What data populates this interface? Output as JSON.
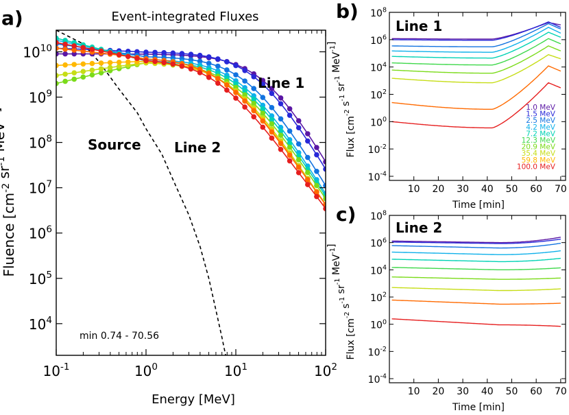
{
  "panels": {
    "a": {
      "label": "a)"
    },
    "b": {
      "label": "b)"
    },
    "c": {
      "label": "c)"
    }
  },
  "chart_data": [
    {
      "id": "a",
      "type": "line",
      "title": "Event-integrated Fluxes",
      "xlabel": "Energy [MeV]",
      "ylabel": "Fluence [cm-2 sr-1 MeV-1]",
      "xscale": "log",
      "yscale": "log",
      "xlim": [
        0.1,
        100
      ],
      "ylim": [
        2000,
        30000000000
      ],
      "xticks": [
        0.1,
        1,
        10,
        100
      ],
      "xtick_labels": [
        {
          "base": "10",
          "exp": "-1"
        },
        {
          "base": "10",
          "exp": "0"
        },
        {
          "base": "10",
          "exp": "1"
        },
        {
          "base": "10",
          "exp": "2"
        }
      ],
      "yticks": [
        10000,
        100000,
        1000000,
        10000000,
        100000000,
        1000000000,
        10000000000
      ],
      "ytick_labels": [
        {
          "base": "10",
          "exp": "4"
        },
        {
          "base": "10",
          "exp": "5"
        },
        {
          "base": "10",
          "exp": "6"
        },
        {
          "base": "10",
          "exp": "7"
        },
        {
          "base": "10",
          "exp": "8"
        },
        {
          "base": "10",
          "exp": "9"
        },
        {
          "base": "10",
          "exp": "10"
        }
      ],
      "annotations": [
        "Line 1",
        "Line 2",
        "Source",
        "min 0.74 - 70.56"
      ],
      "source_curve": {
        "style": "dashed",
        "x": [
          0.1,
          0.2,
          0.3,
          0.5,
          0.8,
          1.0,
          1.5,
          2.0,
          3.0,
          4.0,
          5.0,
          6.0,
          7.0,
          7.7
        ],
        "y": [
          30000000000,
          15000000000,
          6000000000,
          1500000000,
          450000000,
          200000000,
          55000000,
          15000000,
          2500000,
          500000,
          100000,
          20000,
          5000,
          2000
        ]
      },
      "series": [
        {
          "color": "#5a16a4",
          "low_energy": 9000000000,
          "peak": 9000000000,
          "rollover": 22,
          "decay_power": 3.5
        },
        {
          "color": "#2828d8",
          "low_energy": 12000000000,
          "peak": 10000000000,
          "rollover": 18,
          "decay_power": 3.4
        },
        {
          "color": "#1273e0",
          "low_energy": 15000000000,
          "peak": 8000000000,
          "rollover": 14,
          "decay_power": 3.3
        },
        {
          "color": "#0fb0ea",
          "low_energy": 18000000000,
          "peak": 7000000000,
          "rollover": 12,
          "decay_power": 3.2
        },
        {
          "color": "#00d2b4",
          "low_energy": 20000000000,
          "peak": 6500000000,
          "rollover": 11,
          "decay_power": 3.1
        },
        {
          "color": "#7bdb1a",
          "low_energy": 2000000000,
          "peak": 6000000000,
          "rollover": 10,
          "decay_power": 3.0
        },
        {
          "color": "#c6dd16",
          "low_energy": 3000000000,
          "peak": 6000000000,
          "rollover": 9,
          "decay_power": 3.0
        },
        {
          "color": "#ffb800",
          "low_energy": 5000000000,
          "peak": 6500000000,
          "rollover": 8,
          "decay_power": 2.9
        },
        {
          "color": "#ff6a00",
          "low_energy": 12000000000,
          "peak": 7500000000,
          "rollover": 7,
          "decay_power": 2.8
        },
        {
          "color": "#e61e1e",
          "low_energy": 16000000000,
          "peak": 7000000000,
          "rollover": 6,
          "decay_power": 2.7
        }
      ]
    },
    {
      "id": "b",
      "type": "line",
      "title": "Line 1",
      "xlabel": "Time [min]",
      "ylabel": "Flux [cm-2 s-1 sr-1 MeV-1]",
      "yscale": "log",
      "xlim": [
        0,
        72
      ],
      "ylim": [
        5e-05,
        100000000
      ],
      "xticks": [
        10,
        20,
        30,
        40,
        50,
        60,
        70
      ],
      "yticks": [
        0.0001,
        0.01,
        1,
        100,
        10000,
        1000000,
        100000000
      ],
      "ytick_labels": [
        {
          "base": "10",
          "exp": "-4"
        },
        {
          "base": "10",
          "exp": "-2"
        },
        {
          "base": "10",
          "exp": "0"
        },
        {
          "base": "10",
          "exp": "2"
        },
        {
          "base": "10",
          "exp": "4"
        },
        {
          "base": "10",
          "exp": "6"
        },
        {
          "base": "10",
          "exp": "8"
        }
      ],
      "legend": {
        "placement": "lower right",
        "entries": [
          {
            "label": "1.0 MeV",
            "color": "#5a16a4"
          },
          {
            "label": "1.5 MeV",
            "color": "#2828d8"
          },
          {
            "label": "2.5 MeV",
            "color": "#1273e0"
          },
          {
            "label": "4.2 MeV",
            "color": "#0fb0ea"
          },
          {
            "label": "7.2 MeV",
            "color": "#00d2b4"
          },
          {
            "label": "12.3 MeV",
            "color": "#3ed84a"
          },
          {
            "label": "20.9 MeV",
            "color": "#7bdb1a"
          },
          {
            "label": "35.4 MeV",
            "color": "#c6dd16"
          },
          {
            "label": "59.8 MeV",
            "color": "#ffb800"
          },
          {
            "label": "100.0 MeV",
            "color": "#e61e1e"
          }
        ]
      },
      "series": [
        {
          "color": "#5a16a4",
          "start": 1200000,
          "min": 1100000,
          "peak": 18000000,
          "end": 12000000
        },
        {
          "color": "#2828d8",
          "start": 1000000,
          "min": 900000,
          "peak": 20000000,
          "end": 8000000
        },
        {
          "color": "#1273e0",
          "start": 350000,
          "min": 300000,
          "peak": 15000000,
          "end": 6000000
        },
        {
          "color": "#0fb0ea",
          "start": 150000,
          "min": 120000,
          "peak": 8000000,
          "end": 3000000
        },
        {
          "color": "#00d2b4",
          "start": 60000,
          "min": 45000,
          "peak": 3500000,
          "end": 1500000
        },
        {
          "color": "#3ed84a",
          "start": 20000,
          "min": 14000,
          "peak": 1200000,
          "end": 500000
        },
        {
          "color": "#7bdb1a",
          "start": 6000,
          "min": 3500,
          "peak": 350000,
          "end": 150000
        },
        {
          "color": "#c6dd16",
          "start": 1500,
          "min": 700,
          "peak": 80000,
          "end": 40000
        },
        {
          "color": "#ff6a00",
          "start": 25,
          "min": 8,
          "peak": 12000,
          "end": 5000
        },
        {
          "color": "#e61e1e",
          "start": 1.0,
          "min": 0.35,
          "peak": 700,
          "end": 300
        }
      ]
    },
    {
      "id": "c",
      "type": "line",
      "title": "Line 2",
      "xlabel": "Time [min]",
      "ylabel": "Flux [cm-2 s-1 sr-1 MeV-1]",
      "yscale": "log",
      "xlim": [
        0,
        72
      ],
      "ylim": [
        5e-05,
        100000000
      ],
      "xticks": [
        10,
        20,
        30,
        40,
        50,
        60,
        70
      ],
      "yticks": [
        0.0001,
        0.01,
        1,
        100,
        10000,
        1000000,
        100000000
      ],
      "ytick_labels": [
        {
          "base": "10",
          "exp": "-4"
        },
        {
          "base": "10",
          "exp": "-2"
        },
        {
          "base": "10",
          "exp": "0"
        },
        {
          "base": "10",
          "exp": "2"
        },
        {
          "base": "10",
          "exp": "4"
        },
        {
          "base": "10",
          "exp": "6"
        },
        {
          "base": "10",
          "exp": "8"
        }
      ],
      "series": [
        {
          "color": "#5a16a4",
          "start": 1300000,
          "mid": 1000000,
          "end": 2500000
        },
        {
          "color": "#2828d8",
          "start": 1100000,
          "mid": 850000,
          "end": 1800000
        },
        {
          "color": "#1273e0",
          "start": 600000,
          "mid": 400000,
          "end": 900000
        },
        {
          "color": "#0fb0ea",
          "start": 200000,
          "mid": 130000,
          "end": 250000
        },
        {
          "color": "#00d2b4",
          "start": 60000,
          "mid": 40000,
          "end": 70000
        },
        {
          "color": "#3ed84a",
          "start": 15000,
          "mid": 10000,
          "end": 14000
        },
        {
          "color": "#7bdb1a",
          "start": 3000,
          "mid": 2000,
          "end": 2500
        },
        {
          "color": "#c6dd16",
          "start": 500,
          "mid": 300,
          "end": 400
        },
        {
          "color": "#ff6a00",
          "start": 60,
          "mid": 30,
          "end": 35
        },
        {
          "color": "#e61e1e",
          "start": 2.5,
          "mid": 0.9,
          "end": 0.7
        }
      ]
    }
  ]
}
